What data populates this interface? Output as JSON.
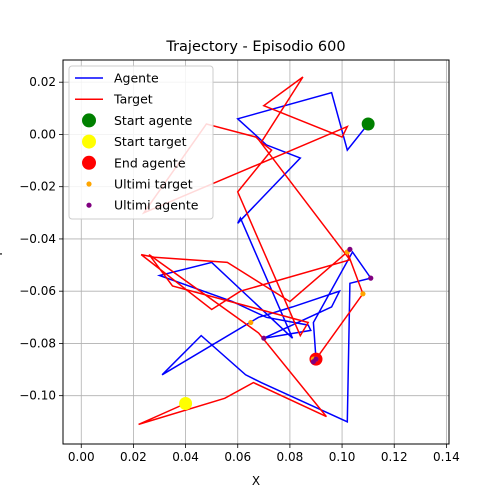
{
  "chart_data": {
    "type": "line",
    "title": "Trajectory - Episodio 600",
    "xlabel": "X",
    "ylabel": "Y",
    "xlim": [
      -0.007,
      0.141
    ],
    "ylim": [
      -0.1185,
      0.0285
    ],
    "grid": true,
    "legend_position": "top-left",
    "xticks": [
      0.0,
      0.02,
      0.04,
      0.06,
      0.08,
      0.1,
      0.12,
      0.14
    ],
    "xtick_labels": [
      "0.00",
      "0.02",
      "0.04",
      "0.06",
      "0.08",
      "0.10",
      "0.12",
      "0.14"
    ],
    "yticks": [
      0.02,
      0.0,
      -0.02,
      -0.04,
      -0.06,
      -0.08,
      -0.1
    ],
    "ytick_labels": [
      "0.02",
      "0.00",
      "−0.02",
      "−0.04",
      "−0.06",
      "−0.08",
      "−0.10"
    ],
    "series": [
      {
        "name": "Agente",
        "kind": "line",
        "color": "#0000ff",
        "x": [
          0.11,
          0.102,
          0.096,
          0.06,
          0.071,
          0.084,
          0.06,
          0.061,
          0.081,
          0.05,
          0.03,
          0.058,
          0.071,
          0.087,
          0.088,
          0.07,
          0.096,
          0.099,
          0.081,
          0.068,
          0.031,
          0.046,
          0.063,
          0.069,
          0.102,
          0.103,
          0.111,
          0.104,
          0.089,
          0.09
        ],
        "y": [
          0.004,
          -0.006,
          0.016,
          0.006,
          -0.004,
          -0.009,
          -0.034,
          -0.032,
          -0.078,
          -0.049,
          -0.054,
          -0.064,
          -0.07,
          -0.073,
          -0.075,
          -0.078,
          -0.066,
          -0.06,
          -0.066,
          -0.07,
          -0.092,
          -0.077,
          -0.092,
          -0.095,
          -0.11,
          -0.057,
          -0.055,
          -0.045,
          -0.072,
          -0.086
        ]
      },
      {
        "name": "Target",
        "kind": "line",
        "color": "#ff0000",
        "x": [
          0.04,
          0.022,
          0.055,
          0.066,
          0.094,
          0.068,
          0.026,
          0.035,
          0.087,
          0.084,
          0.06,
          0.073,
          0.069,
          0.085,
          0.07,
          0.1,
          0.102,
          0.024,
          0.048,
          0.067,
          0.068,
          0.103,
          0.061,
          0.05,
          0.023,
          0.028,
          0.056,
          0.08,
          0.102,
          0.108,
          0.09
        ],
        "y": [
          -0.103,
          -0.111,
          -0.101,
          -0.095,
          -0.108,
          -0.076,
          -0.046,
          -0.058,
          -0.072,
          -0.077,
          -0.022,
          -0.006,
          -0.003,
          0.022,
          0.011,
          -0.001,
          0.003,
          -0.03,
          0.004,
          -0.001,
          -0.002,
          -0.048,
          -0.06,
          -0.067,
          -0.046,
          -0.047,
          -0.049,
          -0.064,
          -0.045,
          -0.061,
          -0.086
        ]
      }
    ],
    "markers": [
      {
        "name": "Start agente",
        "color": "#008000",
        "x": [
          0.11
        ],
        "y": [
          0.004
        ],
        "size": "large"
      },
      {
        "name": "Start target",
        "color": "#ffff00",
        "x": [
          0.04
        ],
        "y": [
          -0.103
        ],
        "size": "large"
      },
      {
        "name": "End agente",
        "color": "#ff0000",
        "x": [
          0.09
        ],
        "y": [
          -0.086
        ],
        "size": "large"
      },
      {
        "name": "Ultimi target",
        "color": "#ffa500",
        "x": [
          0.065,
          0.089,
          0.102,
          0.108,
          0.09
        ],
        "y": [
          -0.072,
          -0.086,
          -0.045,
          -0.061,
          -0.086
        ],
        "size": "small"
      },
      {
        "name": "Ultimi agente",
        "color": "#800080",
        "x": [
          0.07,
          0.09,
          0.103,
          0.111,
          0.089
        ],
        "y": [
          -0.078,
          -0.086,
          -0.044,
          -0.055,
          -0.087
        ],
        "size": "small"
      }
    ]
  }
}
